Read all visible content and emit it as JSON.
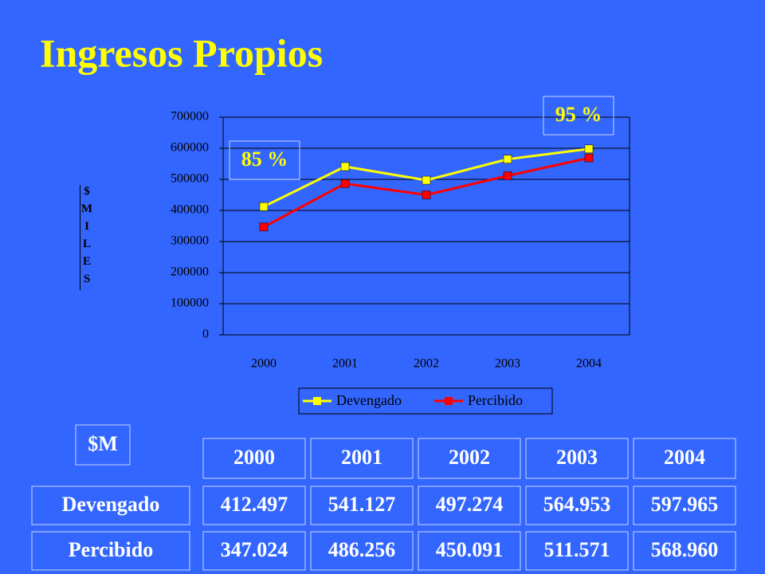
{
  "chart_data": {
    "type": "line",
    "title": "Ingresos Propios",
    "y_label": "$MILES",
    "categories": [
      "2000",
      "2001",
      "2002",
      "2003",
      "2004"
    ],
    "series": [
      {
        "name": "Devengado",
        "color": "#ffff00",
        "values": [
          412497,
          541127,
          497274,
          564953,
          597965
        ]
      },
      {
        "name": "Percibido",
        "color": "#ff0000",
        "values": [
          347024,
          486256,
          450091,
          511571,
          568960
        ]
      }
    ],
    "ylim": [
      0,
      700000
    ],
    "yticks": [
      0,
      100000,
      200000,
      300000,
      400000,
      500000,
      600000,
      700000
    ],
    "grid": true,
    "legend": "bottom",
    "annotations": [
      "85 %",
      "95 %"
    ]
  },
  "table": {
    "unit": "$M",
    "columns": [
      "2000",
      "2001",
      "2002",
      "2003",
      "2004"
    ],
    "rows": [
      [
        "Devengado",
        "412.497",
        "541.127",
        "497.274",
        "564.953",
        "597.965"
      ],
      [
        "Percibido",
        "347.024",
        "486.256",
        "450.091",
        "511.571",
        "568.960"
      ]
    ]
  }
}
